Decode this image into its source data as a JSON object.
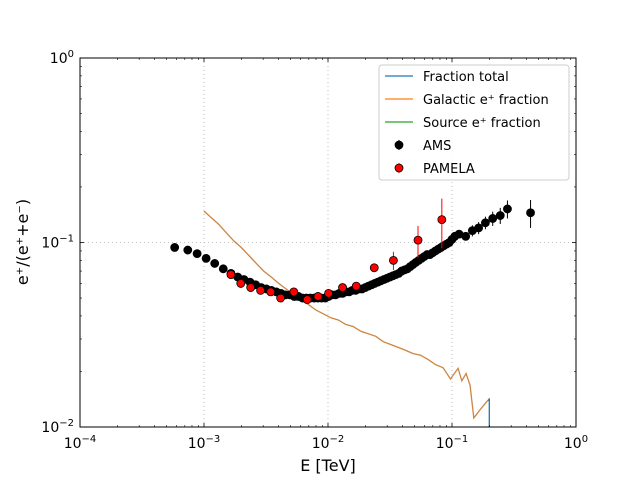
{
  "chart_data": {
    "type": "scatter",
    "title": "",
    "xlabel": "E [TeV]",
    "ylabel": "e⁺/(e⁺+e⁻)",
    "xscale": "log",
    "yscale": "log",
    "xlim": [
      0.0001,
      1
    ],
    "ylim": [
      0.01,
      1
    ],
    "grid": "major, dotted",
    "legend_position": "upper-right",
    "x_ticks": [
      {
        "value": 0.0001,
        "base": "10",
        "exp": "−4"
      },
      {
        "value": 0.001,
        "base": "10",
        "exp": "−3"
      },
      {
        "value": 0.01,
        "base": "10",
        "exp": "−2"
      },
      {
        "value": 0.1,
        "base": "10",
        "exp": "−1"
      },
      {
        "value": 1,
        "base": "10",
        "exp": "0"
      }
    ],
    "y_ticks": [
      {
        "value": 0.01,
        "base": "10",
        "exp": "−2"
      },
      {
        "value": 0.1,
        "base": "10",
        "exp": "−1"
      },
      {
        "value": 1,
        "base": "10",
        "exp": "0"
      }
    ],
    "legend": [
      {
        "label": "Fraction total",
        "color": "#1f77b4",
        "kind": "line"
      },
      {
        "label": "Galactic e⁺ fraction",
        "color": "#ff7f0e",
        "kind": "line"
      },
      {
        "label": "Source e⁺ fraction",
        "color": "#2ca02c",
        "kind": "line"
      },
      {
        "label": "AMS",
        "color": "#000000",
        "kind": "marker"
      },
      {
        "label": "PAMELA",
        "color": "#ff0000",
        "kind": "marker"
      }
    ],
    "series": [
      {
        "name": "Galactic e⁺ fraction",
        "kind": "line",
        "color": "#cd853f",
        "x": [
          0.001,
          0.00115,
          0.00132,
          0.00151,
          0.00174,
          0.002,
          0.0023,
          0.00264,
          0.00303,
          0.00348,
          0.004,
          0.0046,
          0.00528,
          0.00607,
          0.00697,
          0.008,
          0.0092,
          0.0106,
          0.0121,
          0.0139,
          0.016,
          0.0184,
          0.0211,
          0.0243,
          0.0279,
          0.032,
          0.0368,
          0.0423,
          0.0486,
          0.0558,
          0.0641,
          0.0736,
          0.0846,
          0.0972,
          0.104,
          0.112,
          0.12,
          0.13,
          0.14,
          0.15,
          0.17,
          0.19,
          0.2
        ],
        "y": [
          0.148,
          0.136,
          0.125,
          0.113,
          0.102,
          0.094,
          0.085,
          0.077,
          0.07,
          0.065,
          0.06,
          0.056,
          0.052,
          0.049,
          0.046,
          0.043,
          0.041,
          0.039,
          0.038,
          0.036,
          0.035,
          0.033,
          0.032,
          0.031,
          0.029,
          0.028,
          0.027,
          0.026,
          0.025,
          0.0245,
          0.0232,
          0.0218,
          0.021,
          0.0182,
          0.0194,
          0.0208,
          0.0178,
          0.0195,
          0.0168,
          0.0112,
          0.0125,
          0.0137,
          0.0142
        ]
      },
      {
        "name": "Fraction total",
        "kind": "line",
        "color": "#1f77b4",
        "x": [
          0.198,
          0.2,
          0.2
        ],
        "y": [
          0.0138,
          0.0143,
          0.01
        ]
      },
      {
        "name": "AMS",
        "kind": "marker",
        "color": "#000000",
        "x": [
          0.00058,
          0.00074,
          0.00088,
          0.00104,
          0.00122,
          0.00143,
          0.00165,
          0.00187,
          0.0021,
          0.00235,
          0.00261,
          0.00289,
          0.00319,
          0.0035,
          0.00383,
          0.00418,
          0.00455,
          0.00494,
          0.00535,
          0.00578,
          0.00623,
          0.00671,
          0.00721,
          0.00774,
          0.00829,
          0.00888,
          0.0095,
          0.0101,
          0.0108,
          0.0115,
          0.0123,
          0.0131,
          0.0139,
          0.0148,
          0.0157,
          0.0167,
          0.0177,
          0.0188,
          0.02,
          0.0212,
          0.0225,
          0.0238,
          0.0252,
          0.0267,
          0.0283,
          0.0299,
          0.0316,
          0.0334,
          0.0352,
          0.0372,
          0.0392,
          0.0414,
          0.0437,
          0.046,
          0.0485,
          0.0511,
          0.0539,
          0.0568,
          0.0598,
          0.063,
          0.0663,
          0.0698,
          0.0735,
          0.0774,
          0.0815,
          0.0858,
          0.0903,
          0.095,
          0.1,
          0.1053,
          0.114,
          0.129,
          0.146,
          0.164,
          0.186,
          0.213,
          0.245,
          0.28,
          0.43
        ],
        "y": [
          0.094,
          0.091,
          0.087,
          0.082,
          0.077,
          0.072,
          0.068,
          0.065,
          0.063,
          0.061,
          0.059,
          0.057,
          0.056,
          0.055,
          0.054,
          0.053,
          0.052,
          0.052,
          0.051,
          0.051,
          0.05,
          0.05,
          0.05,
          0.05,
          0.05,
          0.05,
          0.05,
          0.051,
          0.052,
          0.052,
          0.053,
          0.053,
          0.054,
          0.054,
          0.055,
          0.055,
          0.056,
          0.056,
          0.057,
          0.058,
          0.059,
          0.06,
          0.061,
          0.062,
          0.063,
          0.064,
          0.065,
          0.066,
          0.067,
          0.068,
          0.07,
          0.071,
          0.072,
          0.074,
          0.076,
          0.078,
          0.08,
          0.082,
          0.084,
          0.086,
          0.086,
          0.088,
          0.09,
          0.092,
          0.094,
          0.096,
          0.098,
          0.1,
          0.104,
          0.108,
          0.111,
          0.108,
          0.116,
          0.12,
          0.128,
          0.135,
          0.14,
          0.152,
          0.145
        ],
        "yerr": [
          0.002,
          0.002,
          0.002,
          0.002,
          0.002,
          0.002,
          0.002,
          0.002,
          0.002,
          0.002,
          0.002,
          0.002,
          0.002,
          0.002,
          0.002,
          0.002,
          0.002,
          0.002,
          0.002,
          0.002,
          0.002,
          0.002,
          0.002,
          0.002,
          0.002,
          0.002,
          0.002,
          0.002,
          0.002,
          0.002,
          0.002,
          0.002,
          0.002,
          0.002,
          0.002,
          0.002,
          0.002,
          0.002,
          0.002,
          0.002,
          0.002,
          0.002,
          0.002,
          0.002,
          0.002,
          0.002,
          0.002,
          0.002,
          0.002,
          0.002,
          0.002,
          0.002,
          0.002,
          0.003,
          0.003,
          0.003,
          0.003,
          0.003,
          0.003,
          0.003,
          0.003,
          0.003,
          0.003,
          0.004,
          0.004,
          0.004,
          0.004,
          0.004,
          0.005,
          0.005,
          0.005,
          0.005,
          0.008,
          0.009,
          0.01,
          0.012,
          0.014,
          0.017,
          0.025
        ]
      },
      {
        "name": "PAMELA",
        "kind": "marker",
        "color": "#ff0000",
        "x": [
          0.00165,
          0.00198,
          0.00238,
          0.00286,
          0.00345,
          0.00415,
          0.0053,
          0.0068,
          0.0083,
          0.0101,
          0.0131,
          0.0169,
          0.0236,
          0.0337,
          0.0532,
          0.0828
        ],
        "y": [
          0.067,
          0.06,
          0.057,
          0.055,
          0.054,
          0.05,
          0.054,
          0.049,
          0.051,
          0.053,
          0.057,
          0.058,
          0.073,
          0.08,
          0.103,
          0.133
        ],
        "yerr": [
          0.002,
          0.002,
          0.002,
          0.002,
          0.002,
          0.002,
          0.002,
          0.002,
          0.002,
          0.003,
          0.003,
          0.003,
          0.004,
          0.009,
          0.02,
          0.04
        ]
      }
    ]
  }
}
